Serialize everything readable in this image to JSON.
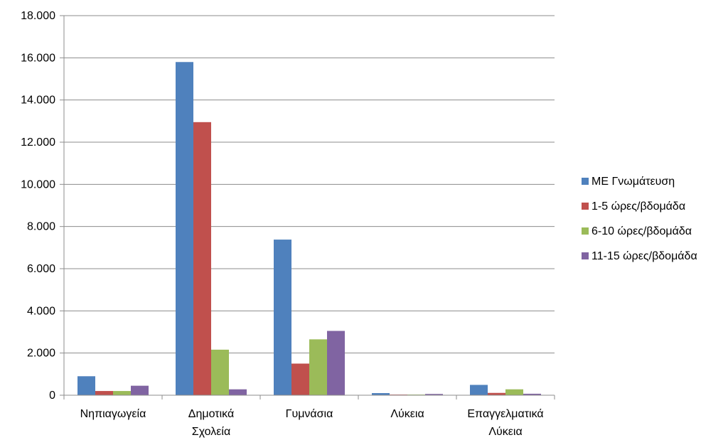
{
  "chart_data": {
    "type": "bar",
    "categories": [
      [
        "Νηπιαγωγεία"
      ],
      [
        "Δημοτικά",
        "Σχολεία"
      ],
      [
        "Γυμνάσια"
      ],
      [
        "Λύκεια"
      ],
      [
        "Επαγγελματικά",
        "Λύκεια"
      ]
    ],
    "series": [
      {
        "name": "ΜΕ Γνωμάτευση",
        "color": "#4F81BD",
        "values": [
          900,
          15800,
          7380,
          100,
          490
        ]
      },
      {
        "name": "1-5 ώρες/βδομάδα",
        "color": "#C0504D",
        "values": [
          200,
          12950,
          1500,
          30,
          110
        ]
      },
      {
        "name": "6-10 ώρες/βδομάδα",
        "color": "#9BBB59",
        "values": [
          200,
          2160,
          2650,
          30,
          280
        ]
      },
      {
        "name": "11-15 ώρες/βδομάδα",
        "color": "#8064A2",
        "values": [
          450,
          280,
          3050,
          60,
          70
        ]
      }
    ],
    "ylim": [
      0,
      18000
    ],
    "yticks": [
      0,
      2000,
      4000,
      6000,
      8000,
      10000,
      12000,
      14000,
      16000,
      18000
    ],
    "ytick_labels": [
      "0",
      "2.000",
      "4.000",
      "6.000",
      "8.000",
      "10.000",
      "12.000",
      "14.000",
      "16.000",
      "18.000"
    ],
    "grid": true,
    "legend_position": "right",
    "title": "",
    "xlabel": "",
    "ylabel": ""
  }
}
